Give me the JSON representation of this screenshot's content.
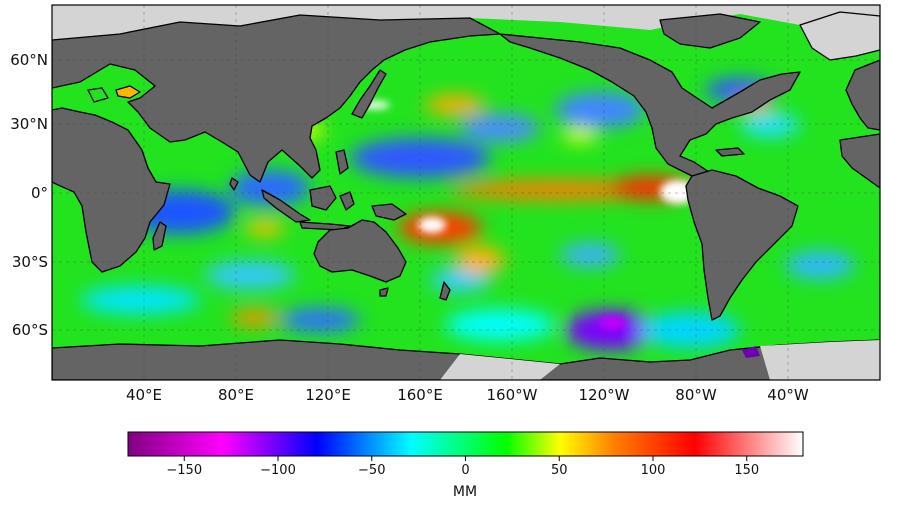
{
  "map": {
    "lat_ticks": [
      "60°N",
      "30°N",
      "0°",
      "30°S",
      "60°S"
    ],
    "lon_ticks": [
      "40°E",
      "80°E",
      "120°E",
      "160°E",
      "160°W",
      "120°W",
      "80°W",
      "40°W"
    ],
    "land_color": "#646464",
    "ice_color": "#d4d4d4",
    "coast_color": "#000000"
  },
  "colorbar": {
    "ticks": [
      "−150",
      "−100",
      "−50",
      "0",
      "50",
      "100",
      "150"
    ],
    "range": [
      -180,
      180
    ],
    "unit_label": "MM",
    "colors": [
      "#800080",
      "#ff00ff",
      "#0000ff",
      "#00ffff",
      "#00ff00",
      "#ffff00",
      "#ff8000",
      "#ff0000",
      "#ffffff"
    ]
  }
}
